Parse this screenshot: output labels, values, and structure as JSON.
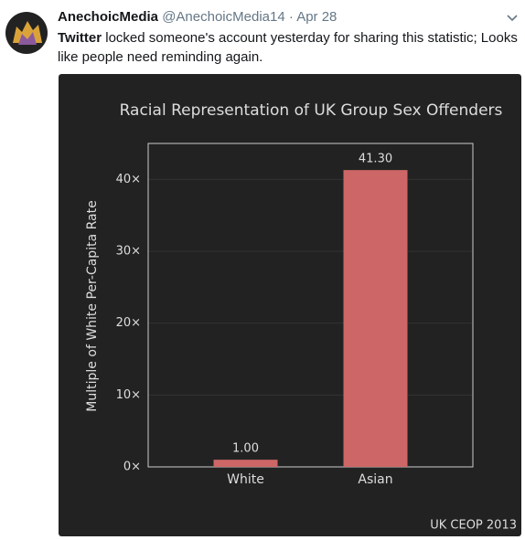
{
  "tweet": {
    "display_name": "AnechoicMedia",
    "handle": "@AnechoicMedia14",
    "separator": "·",
    "date": "Apr 28",
    "text_bold": "Twitter",
    "text": "locked someone's account yesterday for sharing this statistic; Looks like people need reminding again."
  },
  "chart_data": {
    "type": "bar",
    "title": "Racial Representation of UK Group Sex Offenders",
    "y_label": "Multiple of White Per-Capita Rate",
    "categories": [
      "White",
      "Asian"
    ],
    "values": [
      1.0,
      41.3
    ],
    "value_labels": [
      "1.00",
      "41.30"
    ],
    "color": "#cd6666",
    "ylim": [
      0,
      45
    ],
    "yticks": [
      {
        "value": 0,
        "label": "0×"
      },
      {
        "value": 10,
        "label": "10×"
      },
      {
        "value": 20,
        "label": "20×"
      },
      {
        "value": 30,
        "label": "30×"
      },
      {
        "value": 40,
        "label": "40×"
      }
    ],
    "grid": true,
    "source": "UK CEOP 2013"
  }
}
